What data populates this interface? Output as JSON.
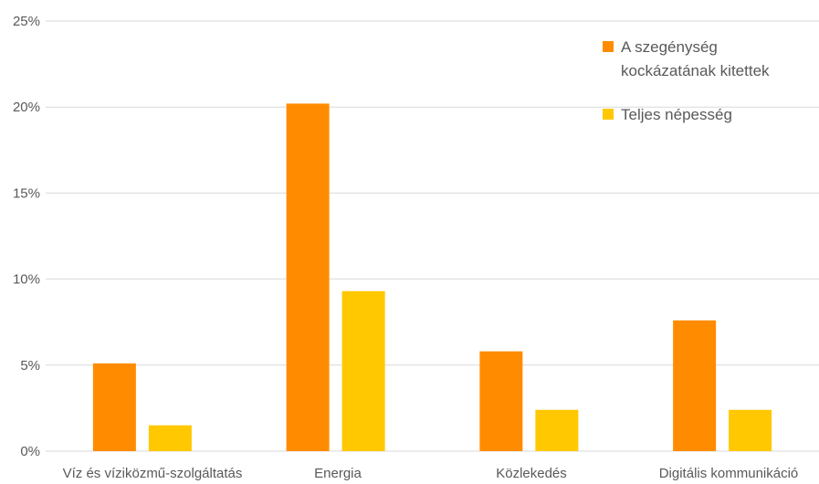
{
  "chart_data": {
    "type": "bar",
    "categories": [
      "Víz és víziközmű-szolgáltatás",
      "Energia",
      "Közlekedés",
      "Digitális kommunikáció"
    ],
    "series": [
      {
        "name_lines": [
          "A szegénység",
          "kockázatának kitettek"
        ],
        "color": "#ff8c00",
        "values": [
          5.1,
          20.2,
          5.8,
          7.6
        ]
      },
      {
        "name_lines": [
          "Teljes népesség"
        ],
        "color": "#ffc800",
        "values": [
          1.5,
          9.3,
          2.4,
          2.4
        ]
      }
    ],
    "ylim": [
      0,
      25
    ],
    "yticks": [
      0,
      5,
      10,
      15,
      20,
      25
    ],
    "ytick_labels": [
      "0%",
      "5%",
      "10%",
      "15%",
      "20%",
      "25%"
    ],
    "grid": true,
    "legend_position": "top-right"
  }
}
